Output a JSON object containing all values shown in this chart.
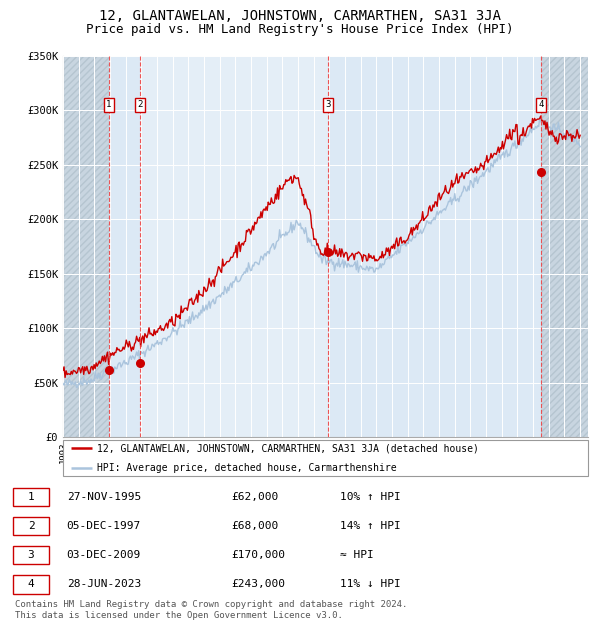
{
  "title": "12, GLANTAWELAN, JOHNSTOWN, CARMARTHEN, SA31 3JA",
  "subtitle": "Price paid vs. HM Land Registry's House Price Index (HPI)",
  "ylim": [
    0,
    350000
  ],
  "yticks": [
    0,
    50000,
    100000,
    150000,
    200000,
    250000,
    300000,
    350000
  ],
  "ytick_labels": [
    "£0",
    "£50K",
    "£100K",
    "£150K",
    "£200K",
    "£250K",
    "£300K",
    "£350K"
  ],
  "xlim_start": 1993.0,
  "xlim_end": 2026.5,
  "sale_points": [
    {
      "label": "1",
      "date_num": 1995.91,
      "price": 62000
    },
    {
      "label": "2",
      "date_num": 1997.92,
      "price": 68000
    },
    {
      "label": "3",
      "date_num": 2009.92,
      "price": 170000
    },
    {
      "label": "4",
      "date_num": 2023.49,
      "price": 243000
    }
  ],
  "sale_vlines": [
    1995.91,
    1997.92,
    2009.92,
    2023.49
  ],
  "legend_line1": "12, GLANTAWELAN, JOHNSTOWN, CARMARTHEN, SA31 3JA (detached house)",
  "legend_line2": "HPI: Average price, detached house, Carmarthenshire",
  "table_rows": [
    {
      "num": "1",
      "date": "27-NOV-1995",
      "price": "£62,000",
      "hpi": "10% ↑ HPI"
    },
    {
      "num": "2",
      "date": "05-DEC-1997",
      "price": "£68,000",
      "hpi": "14% ↑ HPI"
    },
    {
      "num": "3",
      "date": "03-DEC-2009",
      "price": "£170,000",
      "hpi": "≈ HPI"
    },
    {
      "num": "4",
      "date": "28-JUN-2023",
      "price": "£243,000",
      "hpi": "11% ↓ HPI"
    }
  ],
  "footnote": "Contains HM Land Registry data © Crown copyright and database right 2024.\nThis data is licensed under the Open Government Licence v3.0.",
  "hpi_color": "#aac4dd",
  "price_color": "#cc0000",
  "dot_color": "#cc0000",
  "bg_color": "#dce9f5",
  "grid_color": "#ffffff",
  "vline_color": "#ee4444",
  "title_fontsize": 10,
  "subtitle_fontsize": 9
}
